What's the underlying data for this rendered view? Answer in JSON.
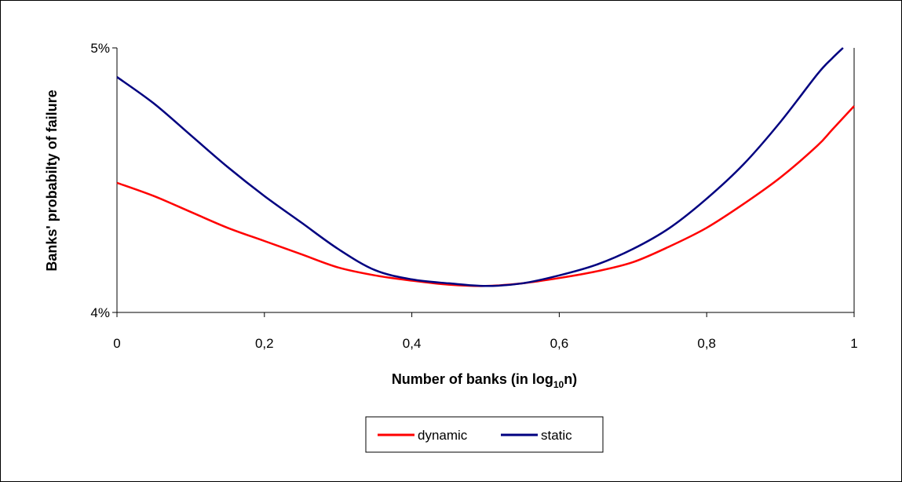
{
  "chart_data": {
    "type": "line",
    "title": "",
    "xlabel_main": "Number of banks (in log",
    "xlabel_sub": "10",
    "xlabel_end": "n)",
    "ylabel": "Banks' probabilty of failure",
    "xlim": [
      0,
      1
    ],
    "ylim": [
      4,
      5
    ],
    "x_ticks": [
      "0",
      "0,2",
      "0,4",
      "0,6",
      "0,8",
      "1"
    ],
    "x_tick_values": [
      0,
      0.2,
      0.4,
      0.6,
      0.8,
      1
    ],
    "y_ticks": [
      "4%",
      "5%"
    ],
    "y_tick_values": [
      4,
      5
    ],
    "grid": false,
    "legend_position": "bottom",
    "series": [
      {
        "name": "dynamic",
        "color": "#ff0000",
        "points": [
          [
            0,
            4.49
          ],
          [
            0.05,
            4.44
          ],
          [
            0.1,
            4.38
          ],
          [
            0.15,
            4.32
          ],
          [
            0.2,
            4.27
          ],
          [
            0.25,
            4.22
          ],
          [
            0.3,
            4.17
          ],
          [
            0.35,
            4.14
          ],
          [
            0.4,
            4.12
          ],
          [
            0.45,
            4.105
          ],
          [
            0.5,
            4.1
          ],
          [
            0.55,
            4.11
          ],
          [
            0.6,
            4.13
          ],
          [
            0.65,
            4.155
          ],
          [
            0.7,
            4.19
          ],
          [
            0.75,
            4.25
          ],
          [
            0.8,
            4.32
          ],
          [
            0.85,
            4.41
          ],
          [
            0.9,
            4.51
          ],
          [
            0.95,
            4.63
          ],
          [
            0.97,
            4.69
          ],
          [
            1.0,
            4.78
          ]
        ]
      },
      {
        "name": "static",
        "color": "#000080",
        "points": [
          [
            0,
            4.89
          ],
          [
            0.05,
            4.79
          ],
          [
            0.1,
            4.67
          ],
          [
            0.15,
            4.55
          ],
          [
            0.2,
            4.44
          ],
          [
            0.25,
            4.34
          ],
          [
            0.3,
            4.24
          ],
          [
            0.35,
            4.16
          ],
          [
            0.4,
            4.125
          ],
          [
            0.45,
            4.11
          ],
          [
            0.5,
            4.1
          ],
          [
            0.55,
            4.11
          ],
          [
            0.6,
            4.14
          ],
          [
            0.65,
            4.18
          ],
          [
            0.7,
            4.24
          ],
          [
            0.75,
            4.32
          ],
          [
            0.8,
            4.43
          ],
          [
            0.85,
            4.56
          ],
          [
            0.9,
            4.72
          ],
          [
            0.95,
            4.9
          ],
          [
            0.97,
            4.96
          ],
          [
            0.985,
            5.0
          ]
        ]
      }
    ]
  }
}
